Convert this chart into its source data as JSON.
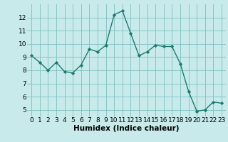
{
  "x": [
    0,
    1,
    2,
    3,
    4,
    5,
    6,
    7,
    8,
    9,
    10,
    11,
    12,
    13,
    14,
    15,
    16,
    17,
    18,
    19,
    20,
    21,
    22,
    23
  ],
  "y": [
    9.1,
    8.6,
    8.0,
    8.6,
    7.9,
    7.8,
    8.4,
    9.6,
    9.4,
    9.9,
    12.2,
    12.5,
    10.8,
    9.1,
    9.4,
    9.9,
    9.8,
    9.8,
    8.5,
    6.4,
    4.9,
    5.0,
    5.6,
    5.5
  ],
  "line_color": "#1a7a6e",
  "marker": "D",
  "markersize": 2.2,
  "linewidth": 1.0,
  "background_color": "#c8eaea",
  "grid_color": "#7dbfbf",
  "xlabel": "Humidex (Indice chaleur)",
  "xlabel_fontsize": 7.5,
  "tick_fontsize": 6.5,
  "xlim": [
    -0.5,
    23.5
  ],
  "ylim": [
    4.5,
    13.0
  ],
  "yticks": [
    5,
    6,
    7,
    8,
    9,
    10,
    11,
    12
  ],
  "xticks": [
    0,
    1,
    2,
    3,
    4,
    5,
    6,
    7,
    8,
    9,
    10,
    11,
    12,
    13,
    14,
    15,
    16,
    17,
    18,
    19,
    20,
    21,
    22,
    23
  ]
}
